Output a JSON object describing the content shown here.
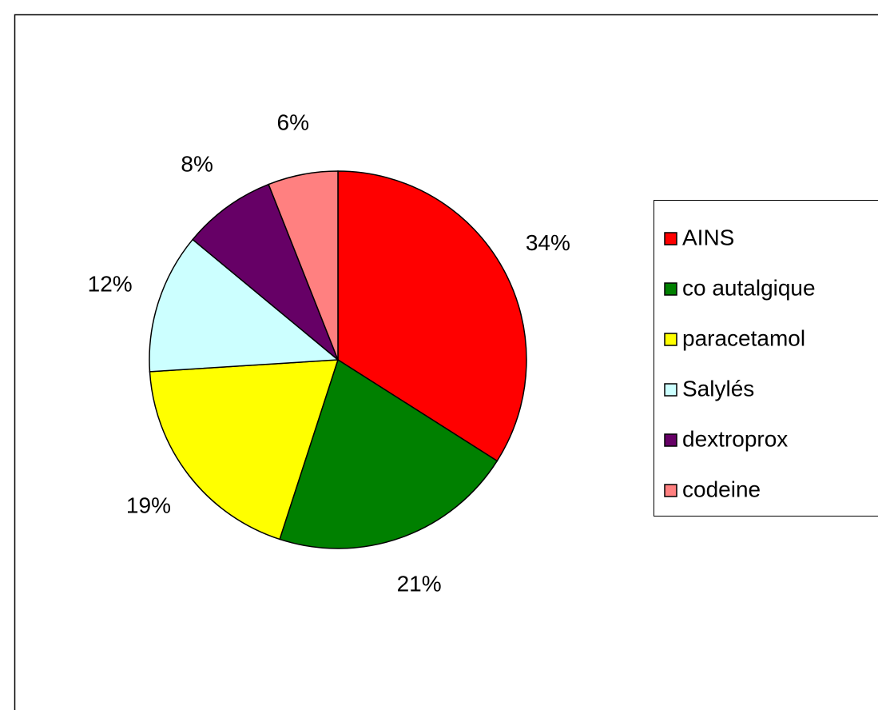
{
  "chart_data": {
    "type": "pie",
    "categories": [
      "AINS",
      "co autalgique",
      "paracetamol",
      "Salylés",
      "dextroprox",
      "codeine"
    ],
    "values": [
      34,
      21,
      19,
      12,
      8,
      6
    ],
    "value_labels": [
      "34%",
      "21%",
      "19%",
      "12%",
      "8%",
      "6%"
    ],
    "colors": [
      "#ff0000",
      "#008000",
      "#ffff00",
      "#ccffff",
      "#660066",
      "#ff8080"
    ],
    "legend": "right"
  }
}
